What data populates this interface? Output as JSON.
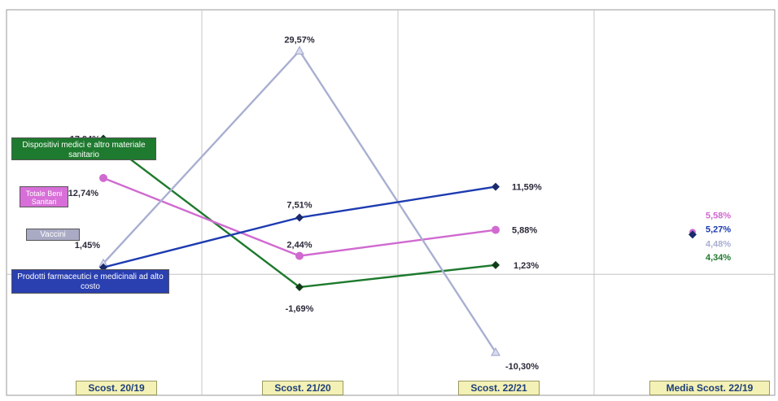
{
  "chart_data": {
    "type": "line",
    "categories": [
      "Scost. 20/19",
      "Scost. 21/20",
      "Scost. 22/21"
    ],
    "summary_category": "Media Scost. 22/19",
    "ylim": [
      -16,
      35
    ],
    "grid": "vertical",
    "series": [
      {
        "name": "Dispositivi medici e altro materiale sanitario",
        "color": "#1e7a2e",
        "label_bg": "#1e7a2e",
        "values": [
          17.94,
          -1.69,
          1.23
        ],
        "labels": [
          "17,94%",
          "-1,69%",
          "1,23%"
        ],
        "mean": 4.34,
        "mean_label": "4,34%"
      },
      {
        "name": "Totale Beni Sanitari",
        "color": "#d06ad0",
        "label_bg": "#d86fd8",
        "values": [
          12.74,
          2.44,
          5.88
        ],
        "labels": [
          "12,74%",
          "2,44%",
          "5,88%"
        ],
        "mean": 5.58,
        "mean_label": "5,58%"
      },
      {
        "name": "Vaccini",
        "color": "#a9afd1",
        "label_bg": "#a9aac4",
        "values": [
          1.45,
          29.57,
          -10.3
        ],
        "labels": [
          "1,45%",
          "29,57%",
          "-10,30%"
        ],
        "mean": 4.48,
        "mean_label": "4,48%"
      },
      {
        "name": "Prodotti farmaceutici e medicinali ad alto costo",
        "color": "#1d3bb0",
        "label_bg": "#2a3fb0",
        "values": [
          0.92,
          7.51,
          11.59
        ],
        "labels": [
          "0,92%",
          "7,51%",
          "11,59%"
        ],
        "mean": 5.27,
        "mean_label": "5,27%"
      }
    ]
  },
  "legend": {
    "dispositivi": "Dispositivi medici e altro materiale sanitario",
    "totale": "Totale Beni Sanitari",
    "vaccini": "Vaccini",
    "prodotti": "Prodotti farmaceutici e medicinali ad alto costo"
  }
}
